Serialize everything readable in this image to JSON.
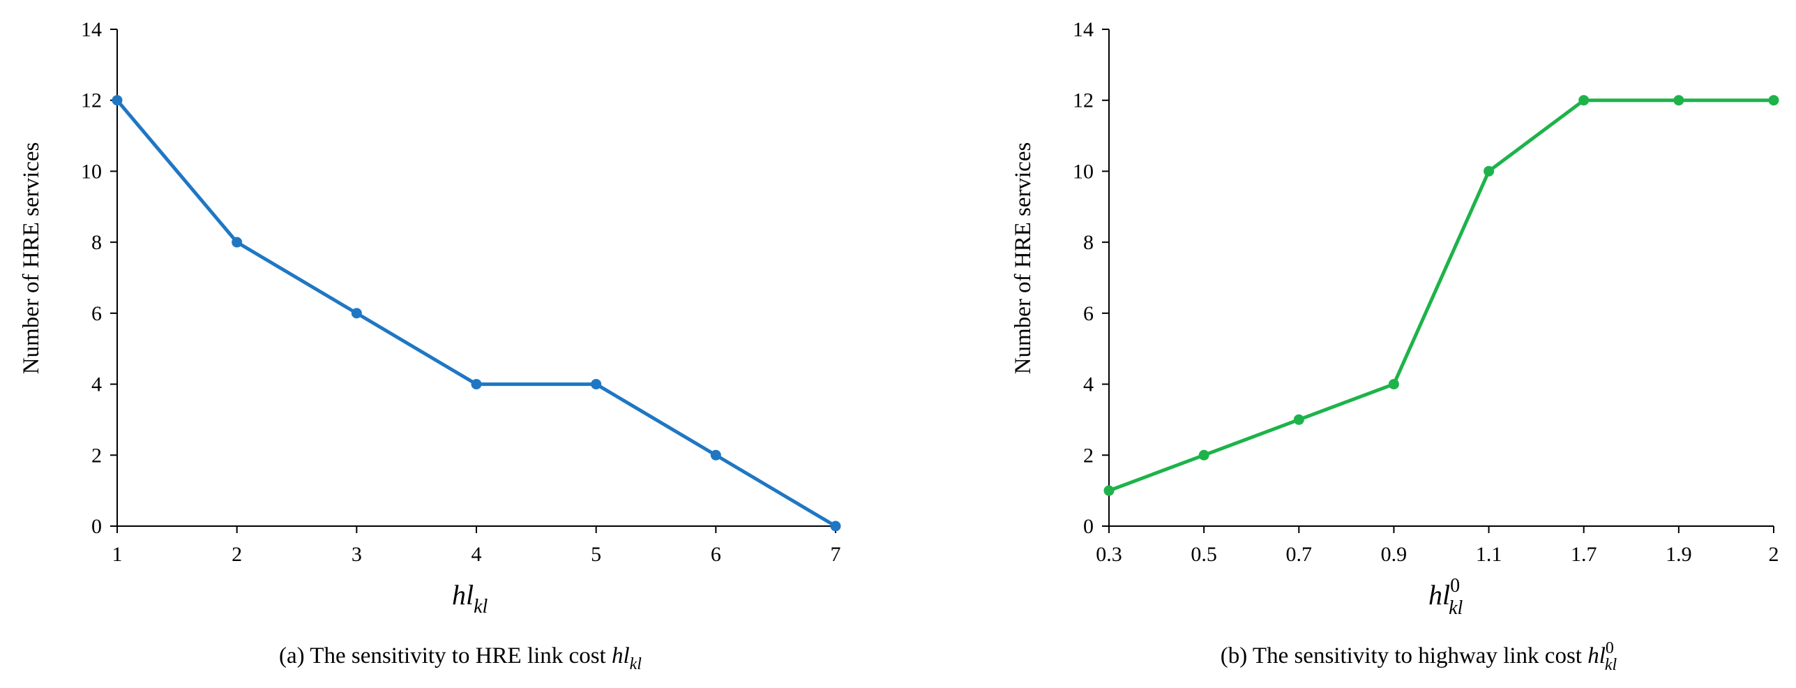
{
  "chart_data": [
    {
      "type": "line",
      "x": [
        "1",
        "2",
        "3",
        "4",
        "5",
        "6",
        "7"
      ],
      "series": [
        {
          "name": "",
          "values": [
            12,
            8,
            6,
            4,
            4,
            2,
            0
          ],
          "color": "#1f77c4"
        }
      ],
      "ylabel": "Number of HRE services",
      "xlabel": {
        "base": "hl",
        "sub": "kl",
        "sup": ""
      },
      "ylim": [
        0,
        14
      ],
      "yticks": [
        "0",
        "2",
        "4",
        "6",
        "8",
        "10",
        "12",
        "14"
      ],
      "caption": {
        "text": "(a) The sensitivity to HRE link cost ",
        "var_base": "hl",
        "var_sub": "kl",
        "var_sup": ""
      },
      "grid": false,
      "legend": "none"
    },
    {
      "type": "line",
      "x": [
        "0.3",
        "0.5",
        "0.7",
        "0.9",
        "1.1",
        "1.7",
        "1.9",
        "2"
      ],
      "series": [
        {
          "name": "",
          "values": [
            1,
            2,
            3,
            4,
            10,
            12,
            12,
            12
          ],
          "color": "#1db34a"
        }
      ],
      "ylabel": "Number of HRE services",
      "xlabel": {
        "base": "hl",
        "sub": "kl",
        "sup": "0"
      },
      "ylim": [
        0,
        14
      ],
      "yticks": [
        "0",
        "2",
        "4",
        "6",
        "8",
        "10",
        "12",
        "14"
      ],
      "caption": {
        "text": "(b) The sensitivity to highway  link cost ",
        "var_base": "hl",
        "var_sub": "kl",
        "var_sup": "0"
      },
      "grid": false,
      "legend": "none"
    }
  ]
}
